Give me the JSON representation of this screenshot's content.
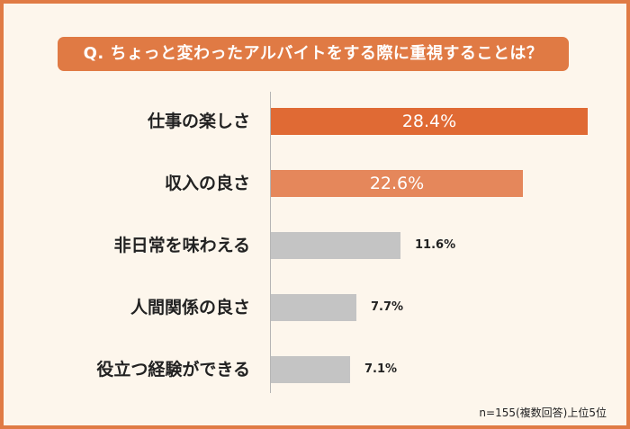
{
  "chart_data": {
    "type": "bar",
    "orientation": "horizontal",
    "title": "Q. ちょっと変わったアルバイトをする際に重視することは？",
    "categories": [
      "仕事の楽しさ",
      "収入の良さ",
      "非日常を味わえる",
      "人間関係の良さ",
      "役立つ経験ができる"
    ],
    "values": [
      28.4,
      22.6,
      11.6,
      7.7,
      7.1
    ],
    "value_labels": [
      "28.4%",
      "22.6%",
      "11.6%",
      "7.7%",
      "7.1%"
    ],
    "bar_colors": [
      "#e06a34",
      "#e5875b",
      "#c4c4c4",
      "#c4c4c4",
      "#c4c4c4"
    ],
    "xlim": [
      0,
      28.4
    ],
    "grid": false,
    "note": "n=155(複数回答)上位5位"
  }
}
